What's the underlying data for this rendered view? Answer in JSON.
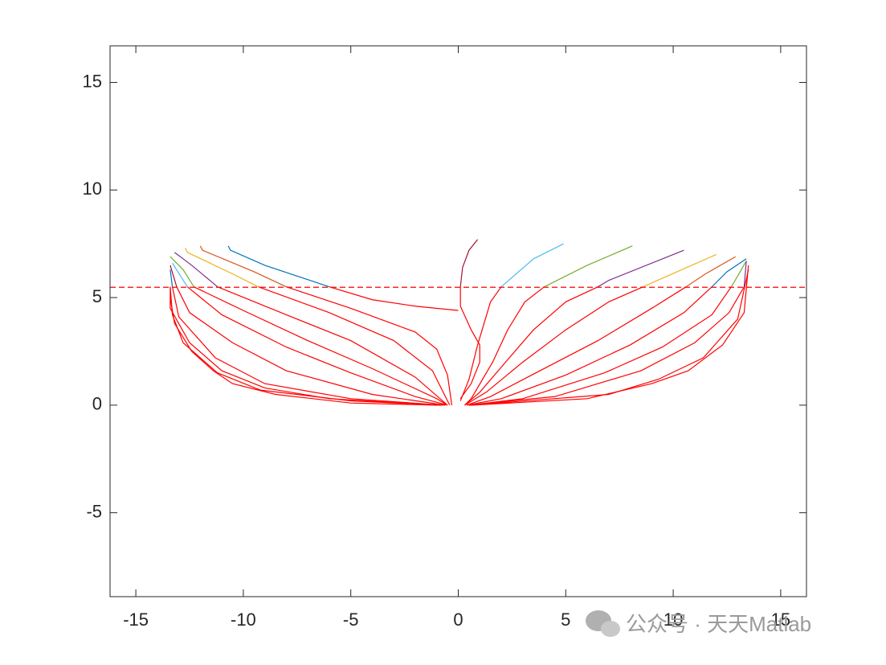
{
  "chart_data": {
    "type": "line",
    "xlim": [
      -16.2,
      16.2
    ],
    "ylim": [
      -8.9,
      16.7
    ],
    "xticks": [
      -15,
      -10,
      -5,
      0,
      5,
      10,
      15
    ],
    "yticks": [
      -5,
      0,
      5,
      10,
      15
    ],
    "box": true,
    "hline": {
      "value": 5.48,
      "color": "#ff0000",
      "style": "dashed"
    },
    "watermark": "公众号 · 天天Matlab",
    "series": [
      {
        "color": "#0072BD",
        "x": [
          -10.7,
          -10.6,
          -9,
          -6
        ],
        "values": [
          7.4,
          7.2,
          6.5,
          5.5
        ]
      },
      {
        "color": "#ff0000",
        "x": [
          -6,
          -4,
          -2,
          0
        ],
        "values": [
          5.5,
          4.9,
          4.6,
          4.4
        ]
      },
      {
        "color": "#D95319",
        "x": [
          -12,
          -11.9,
          -9.5,
          -8
        ],
        "values": [
          7.4,
          7.2,
          6.2,
          5.5
        ]
      },
      {
        "color": "#ff0000",
        "x": [
          -8,
          -5,
          -2,
          -1,
          -0.5,
          -0.3
        ],
        "values": [
          5.5,
          4.5,
          3.4,
          2.6,
          1.4,
          0
        ]
      },
      {
        "color": "#EDB120",
        "x": [
          -12.7,
          -12.6,
          -10.5,
          -9.3
        ],
        "values": [
          7.3,
          7.1,
          6.1,
          5.5
        ]
      },
      {
        "color": "#ff0000",
        "x": [
          -9.3,
          -6,
          -3,
          -1.2,
          -0.4
        ],
        "values": [
          5.5,
          4.3,
          3,
          1.6,
          0
        ]
      },
      {
        "color": "#7E2F8E",
        "x": [
          -13.2,
          -12.4,
          -11.2
        ],
        "values": [
          7.1,
          6.5,
          5.5
        ]
      },
      {
        "color": "#ff0000",
        "x": [
          -11.2,
          -8,
          -5,
          -2,
          -0.5
        ],
        "values": [
          5.5,
          4.2,
          3,
          1.3,
          0
        ]
      },
      {
        "color": "#77AC30",
        "x": [
          -13.4,
          -12.8,
          -12.3
        ],
        "values": [
          6.9,
          6.3,
          5.5
        ]
      },
      {
        "color": "#ff0000",
        "x": [
          -12.3,
          -10,
          -7,
          -4,
          -1,
          -0.5
        ],
        "values": [
          5.5,
          4.4,
          3,
          1.7,
          0.3,
          0
        ]
      },
      {
        "color": "#4DBEEE",
        "x": [
          -13.3,
          -12.6
        ],
        "values": [
          6.6,
          5.5
        ]
      },
      {
        "color": "#ff0000",
        "x": [
          -12.6,
          -11,
          -8,
          -5,
          -2,
          -0.5
        ],
        "values": [
          5.5,
          4.2,
          2.7,
          1.5,
          0.4,
          0
        ]
      },
      {
        "color": "#A2142F",
        "x": [
          -13.4,
          -13.1
        ],
        "values": [
          6.5,
          5.5
        ]
      },
      {
        "color": "#ff0000",
        "x": [
          -13.1,
          -12.5,
          -10.5,
          -8,
          -4,
          -0.6
        ],
        "values": [
          5.5,
          4.3,
          2.9,
          1.6,
          0.5,
          0
        ]
      },
      {
        "color": "#0072BD",
        "x": [
          -13.4,
          -13.3
        ],
        "values": [
          6.3,
          5.5
        ]
      },
      {
        "color": "#ff0000",
        "x": [
          -13.3,
          -13,
          -11.3,
          -9,
          -5,
          -0.7
        ],
        "values": [
          5.5,
          4.1,
          2.2,
          1,
          0.3,
          0
        ]
      },
      {
        "color": "#ff0000",
        "x": [
          -13.4,
          -13.3,
          -12.8,
          -11.2,
          -9.2,
          -5,
          -0.8
        ],
        "values": [
          5.5,
          4.2,
          2.9,
          1.5,
          0.7,
          0.2,
          0
        ]
      },
      {
        "color": "#ff0000",
        "x": [
          -13.4,
          -13.4,
          -12.5,
          -11,
          -9,
          -6,
          -0.9
        ],
        "values": [
          5.5,
          4.5,
          2.9,
          1.6,
          0.8,
          0.3,
          0
        ]
      },
      {
        "color": "#ff0000",
        "x": [
          -13.4,
          -13.2,
          -12.4,
          -11.4,
          -10.5,
          -8.5,
          -5,
          -1
        ],
        "values": [
          5,
          3.8,
          2.5,
          1.6,
          1,
          0.5,
          0.1,
          0
        ]
      },
      {
        "color": "#A2142F",
        "x": [
          0.9,
          0.5,
          0.2,
          0.1
        ],
        "values": [
          7.7,
          7.2,
          6.4,
          5.5
        ]
      },
      {
        "color": "#ff0000",
        "x": [
          0.1,
          0.1,
          0.6,
          1,
          1,
          0.6,
          0.1
        ],
        "values": [
          5.5,
          4.6,
          3.5,
          2.8,
          2,
          1,
          0.3
        ]
      },
      {
        "color": "#4DBEEE",
        "x": [
          4.9,
          3.5,
          2
        ],
        "values": [
          7.5,
          6.8,
          5.5
        ]
      },
      {
        "color": "#ff0000",
        "x": [
          2,
          1.5,
          1.2,
          0.9,
          0.5,
          0.1
        ],
        "values": [
          5.5,
          4.8,
          3.8,
          2.8,
          1.2,
          0.2
        ]
      },
      {
        "color": "#77AC30",
        "x": [
          8.1,
          6,
          4
        ],
        "values": [
          7.4,
          6.5,
          5.5
        ]
      },
      {
        "color": "#ff0000",
        "x": [
          4,
          3.1,
          2.3,
          1.6,
          0.6,
          0.3
        ],
        "values": [
          5.5,
          4.8,
          3.5,
          2,
          0.3,
          0
        ]
      },
      {
        "color": "#7E2F8E",
        "x": [
          10.5,
          7,
          6.5
        ],
        "values": [
          7.2,
          5.8,
          5.5
        ]
      },
      {
        "color": "#ff0000",
        "x": [
          6.5,
          5,
          3.5,
          2.2,
          1,
          0.3
        ],
        "values": [
          5.5,
          4.8,
          3.5,
          2,
          0.6,
          0
        ]
      },
      {
        "color": "#EDB120",
        "x": [
          12,
          9.5,
          8.6
        ],
        "values": [
          7,
          5.9,
          5.5
        ]
      },
      {
        "color": "#ff0000",
        "x": [
          8.6,
          7,
          5,
          3,
          1.3,
          0.3
        ],
        "values": [
          5.5,
          4.8,
          3.5,
          2,
          0.6,
          0
        ]
      },
      {
        "color": "#D95319",
        "x": [
          12.9,
          11.5,
          10.6
        ],
        "values": [
          6.9,
          6.1,
          5.5
        ]
      },
      {
        "color": "#ff0000",
        "x": [
          10.6,
          9,
          6.5,
          3.8,
          1.5,
          0.4
        ],
        "values": [
          5.5,
          4.5,
          3,
          1.6,
          0.4,
          0
        ]
      },
      {
        "color": "#0072BD",
        "x": [
          13.4,
          12.5,
          11.8
        ],
        "values": [
          6.8,
          6.2,
          5.5
        ]
      },
      {
        "color": "#ff0000",
        "x": [
          11.8,
          10.5,
          8,
          5,
          2,
          0.4
        ],
        "values": [
          5.5,
          4.3,
          2.8,
          1.4,
          0.3,
          0
        ]
      },
      {
        "color": "#77AC30",
        "x": [
          13.4,
          13,
          12.7
        ],
        "values": [
          6.7,
          6,
          5.5
        ]
      },
      {
        "color": "#ff0000",
        "x": [
          12.7,
          11.8,
          9.5,
          6.8,
          3,
          0.5
        ],
        "values": [
          5.5,
          4.2,
          2.7,
          1.5,
          0.3,
          0
        ]
      },
      {
        "color": "#7E2F8E",
        "x": [
          13.4,
          13.3
        ],
        "values": [
          6.7,
          5.5
        ]
      },
      {
        "color": "#ff0000",
        "x": [
          13.3,
          12.6,
          11,
          8.5,
          4.5,
          0.5
        ],
        "values": [
          5.5,
          4.3,
          2.9,
          1.6,
          0.4,
          0
        ]
      },
      {
        "color": "#ff0000",
        "x": [
          13.5,
          13.3,
          12.3,
          10.7,
          9,
          6,
          0.6
        ],
        "values": [
          6.5,
          4.3,
          2.8,
          1.6,
          1,
          0.3,
          0
        ]
      },
      {
        "color": "#ff0000",
        "x": [
          13.5,
          13,
          11.4,
          9.3,
          7,
          0.6
        ],
        "values": [
          6.3,
          4,
          2.2,
          1.2,
          0.5,
          0
        ]
      }
    ]
  }
}
